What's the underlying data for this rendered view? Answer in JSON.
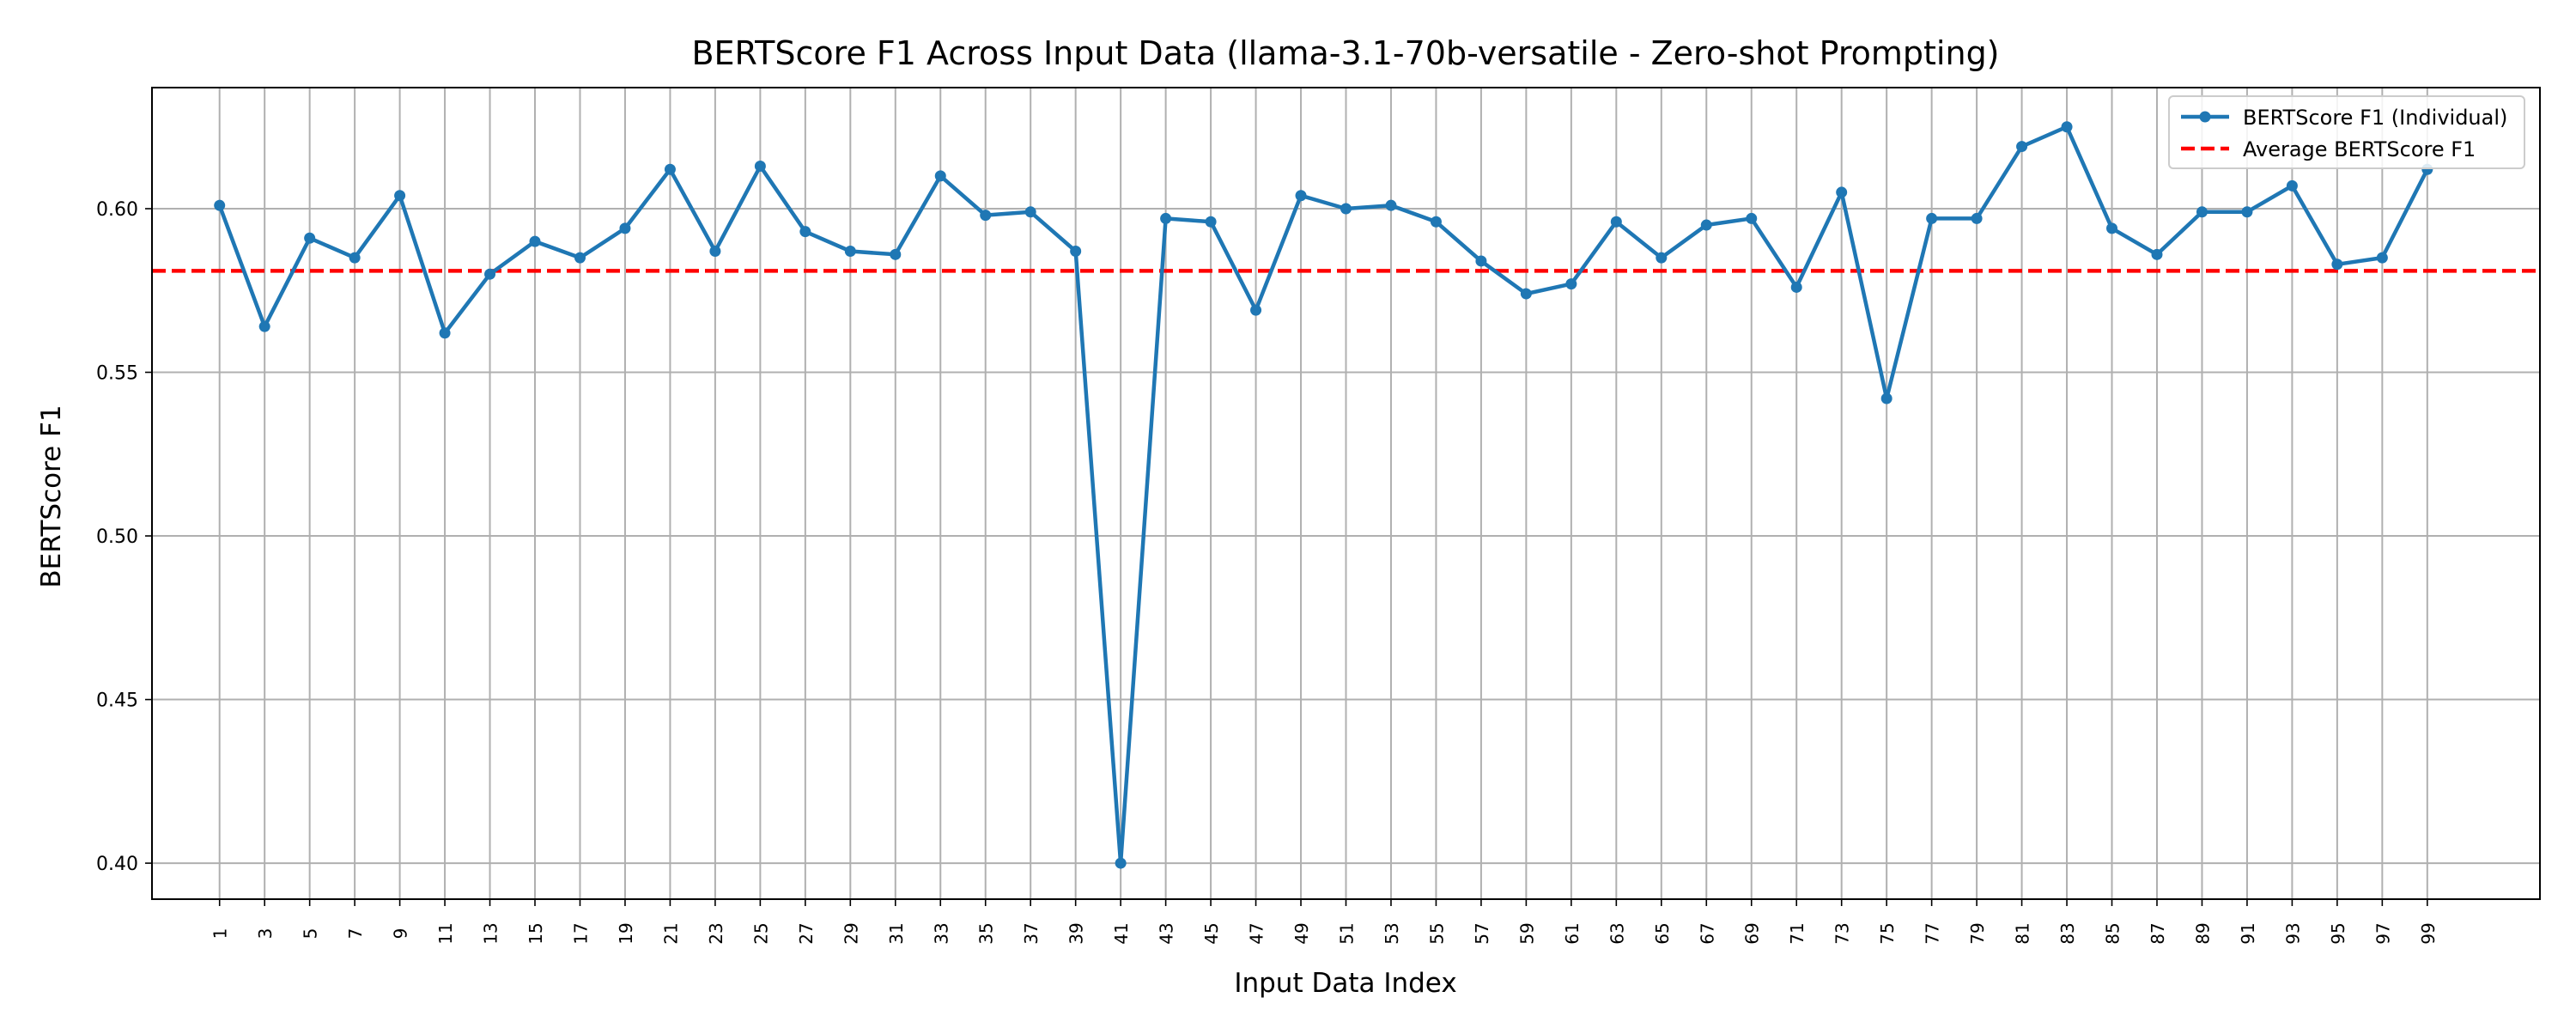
{
  "chart_data": {
    "type": "line",
    "title": "BERTScore F1 Across Input Data (llama-3.1-70b-versatile - Zero-shot Prompting)",
    "xlabel": "Input Data Index",
    "ylabel": "BERTScore F1",
    "ylim": [
      0.389,
      0.637
    ],
    "xlim": [
      -2.0,
      104.0
    ],
    "yticks": [
      0.4,
      0.45,
      0.5,
      0.55,
      0.6
    ],
    "ytick_labels": [
      "0.40",
      "0.45",
      "0.50",
      "0.55",
      "0.60"
    ],
    "xticks": [
      1,
      3,
      5,
      7,
      9,
      11,
      13,
      15,
      17,
      19,
      21,
      23,
      25,
      27,
      29,
      31,
      33,
      35,
      37,
      39,
      41,
      43,
      45,
      47,
      49,
      51,
      53,
      55,
      57,
      59,
      61,
      63,
      65,
      67,
      69,
      71,
      73,
      75,
      77,
      79,
      81,
      83,
      85,
      87,
      89,
      91,
      93,
      95,
      97,
      99
    ],
    "xtick_labels": [
      "1",
      "3",
      "5",
      "7",
      "9",
      "11",
      "13",
      "15",
      "17",
      "19",
      "21",
      "23",
      "25",
      "27",
      "29",
      "31",
      "33",
      "35",
      "37",
      "39",
      "41",
      "43",
      "45",
      "47",
      "49",
      "51",
      "53",
      "55",
      "57",
      "59",
      "61",
      "63",
      "65",
      "67",
      "69",
      "71",
      "73",
      "75",
      "77",
      "79",
      "81",
      "83",
      "85",
      "87",
      "89",
      "91",
      "93",
      "95",
      "97",
      "99"
    ],
    "grid": true,
    "legend_position": "top-right",
    "series": [
      {
        "name": "BERTScore F1 (Individual)",
        "color": "#1f77b4",
        "style": "solid-with-markers",
        "x": [
          1,
          3,
          5,
          7,
          9,
          11,
          13,
          15,
          17,
          19,
          21,
          23,
          25,
          27,
          29,
          31,
          33,
          35,
          37,
          39,
          41,
          43,
          45,
          47,
          49,
          51,
          53,
          55,
          57,
          59,
          61,
          63,
          65,
          67,
          69,
          71,
          73,
          75,
          77,
          79,
          81,
          83,
          85,
          87,
          89,
          91,
          93,
          95,
          97,
          99
        ],
        "values": [
          0.601,
          0.564,
          0.591,
          0.585,
          0.604,
          0.562,
          0.58,
          0.59,
          0.585,
          0.594,
          0.612,
          0.587,
          0.613,
          0.593,
          0.587,
          0.586,
          0.61,
          0.598,
          0.599,
          0.587,
          0.4,
          0.597,
          0.596,
          0.569,
          0.604,
          0.6,
          0.601,
          0.596,
          0.584,
          0.574,
          0.577,
          0.596,
          0.585,
          0.595,
          0.597,
          0.576,
          0.605,
          0.542,
          0.597,
          0.597,
          0.619,
          0.625,
          0.594,
          0.586,
          0.599,
          0.599,
          0.607,
          0.583,
          0.585,
          0.612
        ]
      },
      {
        "name": "Average BERTScore F1",
        "color": "#ff0000",
        "style": "dashed",
        "constant": 0.581
      }
    ]
  }
}
